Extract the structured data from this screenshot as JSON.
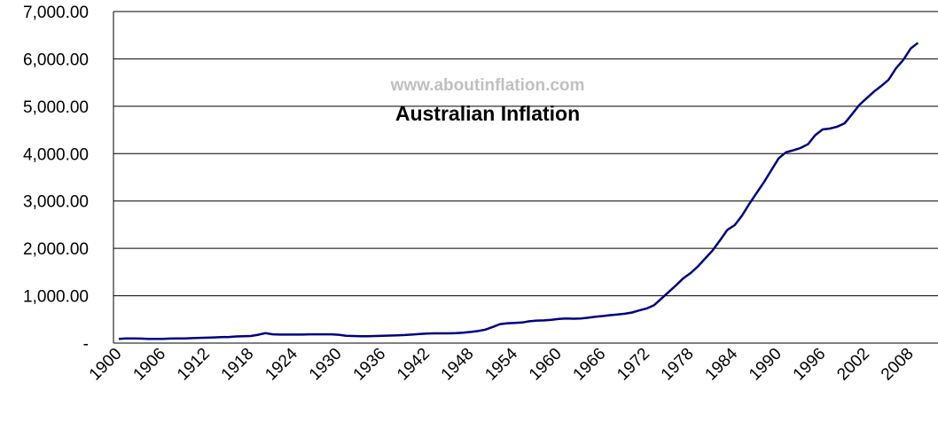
{
  "chart_data": {
    "type": "line",
    "title": "Australian Inflation",
    "watermark": "www.aboutinflation.com",
    "categories": [
      "1900",
      null,
      null,
      null,
      null,
      null,
      "1906",
      null,
      null,
      null,
      null,
      null,
      "1912",
      null,
      null,
      null,
      null,
      null,
      "1918",
      null,
      null,
      null,
      null,
      null,
      "1924",
      null,
      null,
      null,
      null,
      null,
      "1930",
      null,
      null,
      null,
      null,
      null,
      "1936",
      null,
      null,
      null,
      null,
      null,
      "1942",
      null,
      null,
      null,
      null,
      null,
      "1948",
      null,
      null,
      null,
      null,
      null,
      "1954",
      null,
      null,
      null,
      null,
      null,
      "1960",
      null,
      null,
      null,
      null,
      null,
      "1966",
      null,
      null,
      null,
      null,
      null,
      "1972",
      null,
      null,
      null,
      null,
      null,
      "1978",
      null,
      null,
      null,
      null,
      null,
      "1984",
      null,
      null,
      null,
      null,
      null,
      "1990",
      null,
      null,
      null,
      null,
      null,
      "1996",
      null,
      null,
      null,
      null,
      null,
      "2002",
      null,
      null,
      null,
      null,
      null,
      "2008",
      null
    ],
    "series": [
      {
        "name": "Australian Inflation",
        "color": "#000080",
        "values": [
          90,
          100,
          100,
          95,
          90,
          90,
          90,
          95,
          100,
          100,
          105,
          110,
          115,
          120,
          125,
          130,
          140,
          145,
          150,
          175,
          210,
          185,
          180,
          180,
          180,
          180,
          185,
          185,
          185,
          185,
          175,
          155,
          150,
          145,
          145,
          150,
          155,
          160,
          165,
          170,
          180,
          190,
          200,
          205,
          205,
          205,
          210,
          220,
          235,
          255,
          285,
          340,
          400,
          420,
          425,
          435,
          460,
          475,
          480,
          490,
          510,
          520,
          515,
          520,
          535,
          555,
          570,
          590,
          605,
          620,
          645,
          690,
          730,
          800,
          940,
          1080,
          1220,
          1370,
          1480,
          1620,
          1790,
          1960,
          2170,
          2390,
          2490,
          2690,
          2940,
          3170,
          3400,
          3650,
          3900,
          4030,
          4070,
          4120,
          4200,
          4390,
          4510,
          4530,
          4570,
          4640,
          4830,
          5030,
          5170,
          5310,
          5430,
          5560,
          5800,
          5980,
          6220,
          6340
        ]
      }
    ],
    "ylim": [
      0,
      7000
    ],
    "yticks": [
      {
        "value": 0,
        "label": "-"
      },
      {
        "value": 1000,
        "label": "1,000.00"
      },
      {
        "value": 2000,
        "label": "2,000.00"
      },
      {
        "value": 3000,
        "label": "3,000.00"
      },
      {
        "value": 4000,
        "label": "4,000.00"
      },
      {
        "value": 5000,
        "label": "5,000.00"
      },
      {
        "value": 6000,
        "label": "6,000.00"
      },
      {
        "value": 7000,
        "label": "7,000.00"
      }
    ],
    "grid": true
  }
}
